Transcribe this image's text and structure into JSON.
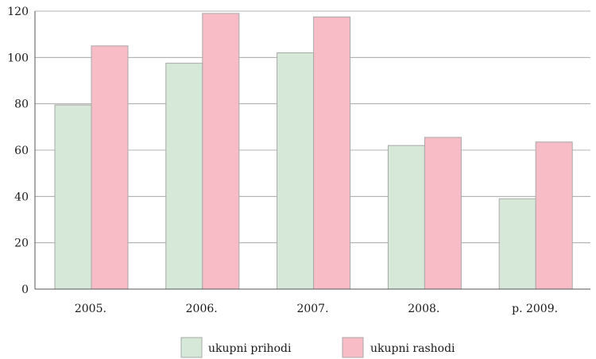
{
  "chart_data": {
    "type": "bar",
    "categories": [
      "2005.",
      "2006.",
      "2007.",
      "2008.",
      "p. 2009."
    ],
    "series": [
      {
        "name": "ukupni prihodi",
        "values": [
          79.5,
          97.5,
          102,
          62,
          39
        ],
        "color": "#d6e9d9"
      },
      {
        "name": "ukupni rashodi",
        "values": [
          105,
          119,
          117.5,
          65.5,
          63.5
        ],
        "color": "#f7bcc6"
      }
    ],
    "ylim": [
      0,
      120
    ],
    "yticks": [
      "0",
      "20",
      "40",
      "60",
      "80",
      "100",
      "120"
    ],
    "title": "",
    "xlabel": "",
    "ylabel": "",
    "grid": true,
    "legend_position": "bottom"
  }
}
